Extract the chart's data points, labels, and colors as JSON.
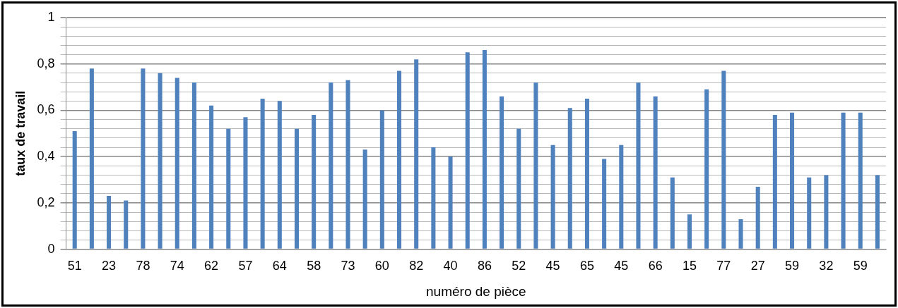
{
  "chart_data": {
    "type": "bar",
    "xlabel": "numéro de pièce",
    "ylabel": "taux de travail",
    "categories": [
      "51",
      null,
      "23",
      null,
      "78",
      null,
      "74",
      null,
      "62",
      null,
      "57",
      null,
      "64",
      null,
      "58",
      null,
      "73",
      null,
      "60",
      null,
      "82",
      null,
      "40",
      null,
      "86",
      null,
      "52",
      null,
      "45",
      null,
      "65",
      null,
      "45",
      null,
      "66",
      null,
      "15",
      null,
      "77",
      null,
      "27",
      null,
      "59",
      null,
      "32",
      null,
      "59",
      null
    ],
    "values": [
      0.51,
      0.78,
      0.23,
      0.21,
      0.78,
      0.76,
      0.74,
      0.72,
      0.62,
      0.52,
      0.57,
      0.65,
      0.64,
      0.52,
      0.58,
      0.72,
      0.73,
      0.43,
      0.6,
      0.77,
      0.82,
      0.44,
      0.4,
      0.85,
      0.86,
      0.66,
      0.52,
      0.72,
      0.45,
      0.61,
      0.65,
      0.39,
      0.45,
      0.72,
      0.66,
      0.31,
      0.15,
      0.69,
      0.77,
      0.13,
      0.27,
      0.58,
      0.59,
      0.31,
      0.32,
      0.59,
      0.59,
      0.32
    ],
    "color": "#4f81bd",
    "ylim": [
      0,
      1
    ],
    "yticks": [
      0,
      {
        "value": 0.04,
        "label": null
      },
      {
        "value": 0.08,
        "label": null
      },
      {
        "value": 0.12,
        "label": null
      },
      {
        "value": 0.16,
        "label": null
      },
      {
        "value": 0.2,
        "label": "0,2"
      },
      {
        "value": 0.24,
        "label": null
      },
      {
        "value": 0.28,
        "label": null
      },
      {
        "value": 0.32,
        "label": null
      },
      {
        "value": 0.36,
        "label": null
      },
      {
        "value": 0.4,
        "label": "0,4"
      },
      {
        "value": 0.44,
        "label": null
      },
      {
        "value": 0.48,
        "label": null
      },
      {
        "value": 0.52,
        "label": null
      },
      {
        "value": 0.56,
        "label": null
      },
      {
        "value": 0.6,
        "label": "0,6"
      },
      {
        "value": 0.64,
        "label": null
      },
      {
        "value": 0.68,
        "label": null
      },
      {
        "value": 0.72,
        "label": null
      },
      {
        "value": 0.76,
        "label": null
      },
      {
        "value": 0.8,
        "label": "0,8"
      },
      {
        "value": 0.84,
        "label": null
      },
      {
        "value": 0.88,
        "label": null
      },
      {
        "value": 0.92,
        "label": null
      },
      {
        "value": 0.96,
        "label": null
      },
      1
    ],
    "grid": "y",
    "legend": false
  }
}
